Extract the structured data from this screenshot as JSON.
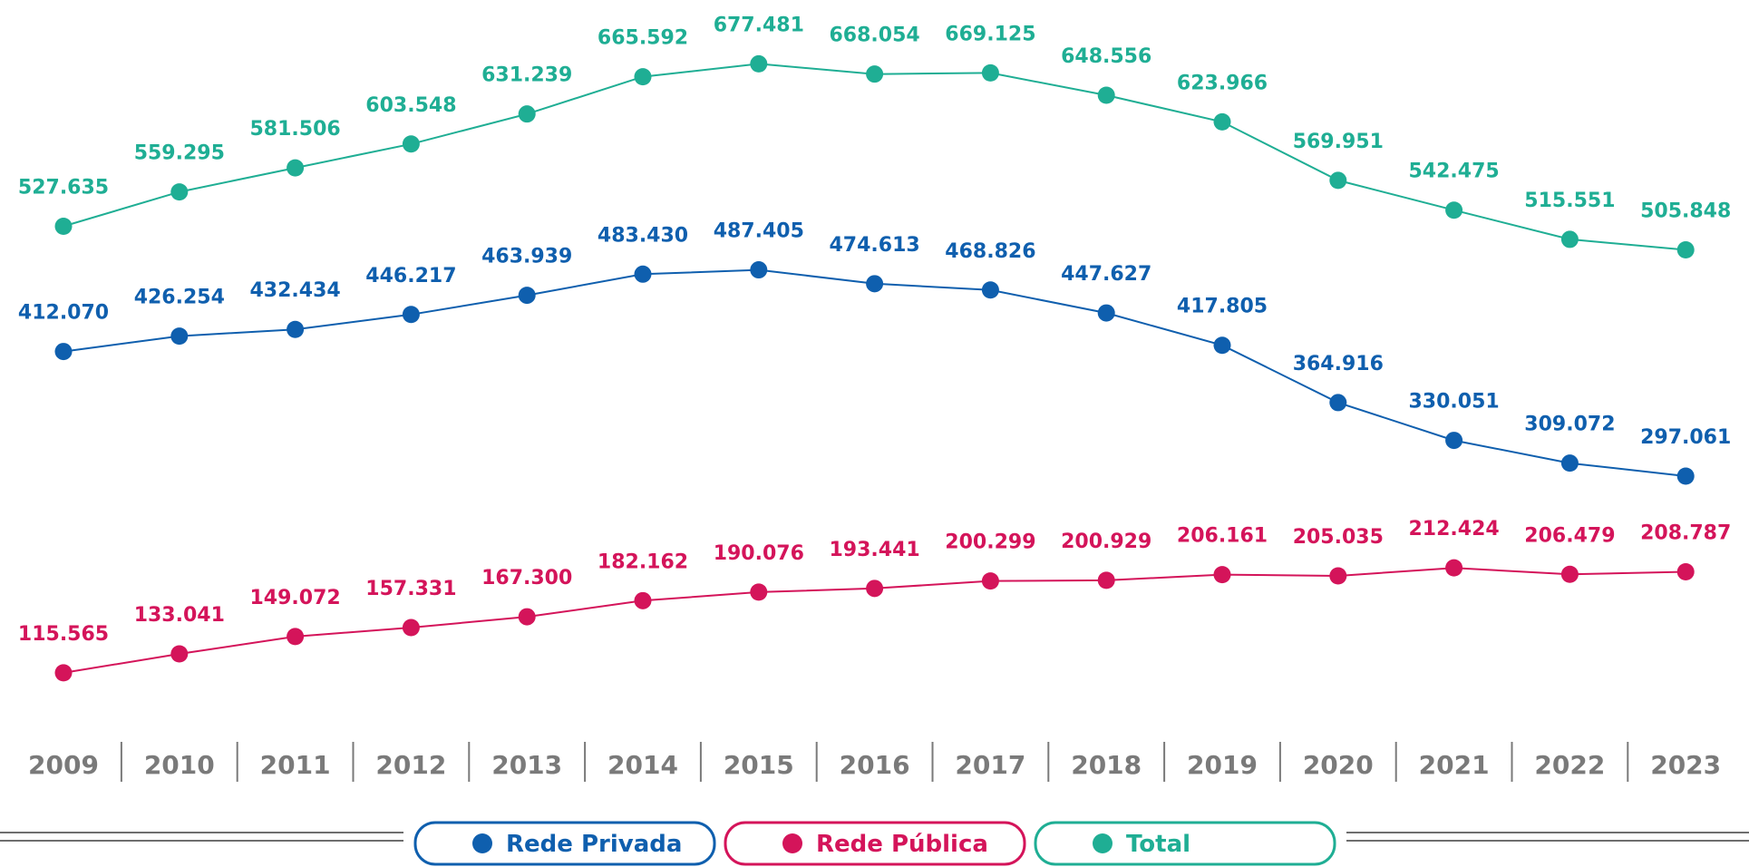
{
  "chart_data": {
    "type": "line",
    "title": "",
    "xlabel": "",
    "ylabel": "",
    "x": [
      "2009",
      "2010",
      "2011",
      "2012",
      "2013",
      "2014",
      "2015",
      "2016",
      "2017",
      "2018",
      "2019",
      "2020",
      "2021",
      "2022",
      "2023"
    ],
    "ylim": [
      0,
      750000
    ],
    "grid": false,
    "legend_position": "bottom-center",
    "series": [
      {
        "name": "Total",
        "color": "#1fae94",
        "values": [
          527635,
          559295,
          581506,
          603548,
          631239,
          665592,
          677481,
          668054,
          669125,
          648556,
          623966,
          569951,
          542475,
          515551,
          505848
        ],
        "labels": [
          "527.635",
          "559.295",
          "581.506",
          "603.548",
          "631.239",
          "665.592",
          "677.481",
          "668.054",
          "669.125",
          "648.556",
          "623.966",
          "569.951",
          "542.475",
          "515.551",
          "505.848"
        ]
      },
      {
        "name": "Rede Privada",
        "color": "#0f5fae",
        "values": [
          412070,
          426254,
          432434,
          446217,
          463939,
          483430,
          487405,
          474613,
          468826,
          447627,
          417805,
          364916,
          330051,
          309072,
          297061
        ],
        "labels": [
          "412.070",
          "426.254",
          "432.434",
          "446.217",
          "463.939",
          "483.430",
          "487.405",
          "474.613",
          "468.826",
          "447.627",
          "417.805",
          "364.916",
          "330.051",
          "309.072",
          "297.061"
        ]
      },
      {
        "name": "Rede Pública",
        "color": "#d4145a",
        "values": [
          115565,
          133041,
          149072,
          157331,
          167300,
          182162,
          190076,
          193441,
          200299,
          200929,
          206161,
          205035,
          212424,
          206479,
          208787
        ],
        "labels": [
          "115.565",
          "133.041",
          "149.072",
          "157.331",
          "167.300",
          "182.162",
          "190.076",
          "193.441",
          "200.299",
          "200.929",
          "206.161",
          "205.035",
          "212.424",
          "206.479",
          "208.787"
        ]
      }
    ],
    "legend": [
      {
        "label": "Rede Privada",
        "color": "#0f5fae"
      },
      {
        "label": "Rede Pública",
        "color": "#d4145a"
      },
      {
        "label": "Total",
        "color": "#1fae94"
      }
    ]
  }
}
